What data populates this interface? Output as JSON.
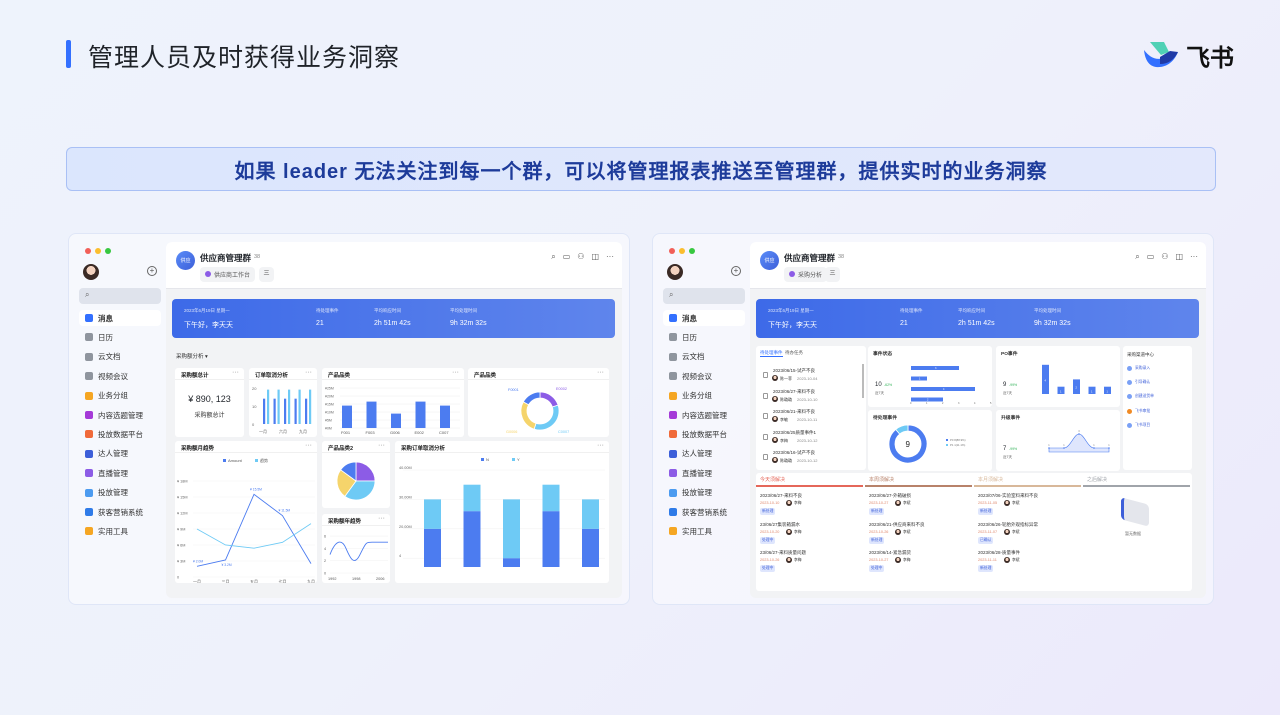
{
  "slide": {
    "title": "管理人员及时获得业务洞察",
    "brand": "飞书",
    "banner": "如果 leader 无法关注到每一个群，可以将管理报表推送至管理群，提供实时的业务洞察"
  },
  "colors": {
    "accent": "#3370ff",
    "blue": "#4c7cf0",
    "light_blue": "#6ecaf5",
    "purple": "#8c5ce6",
    "yellow": "#f5d46b"
  },
  "sidebar": {
    "items": [
      {
        "label": "消息",
        "icon": "chat-icon",
        "color": "#3370ff"
      },
      {
        "label": "日历",
        "icon": "calendar-icon",
        "color": "#8f959e"
      },
      {
        "label": "云文档",
        "icon": "docs-icon",
        "color": "#8f959e"
      },
      {
        "label": "视频会议",
        "icon": "video-icon",
        "color": "#8f959e"
      },
      {
        "label": "业务分组",
        "icon": "grid-icon",
        "color": "#f5a623"
      },
      {
        "label": "内容选题管理",
        "icon": "topic-icon",
        "color": "#a53ad8"
      },
      {
        "label": "投放数据平台",
        "icon": "data-icon",
        "color": "#f06a3a"
      },
      {
        "label": "达人管理",
        "icon": "person-icon",
        "color": "#3d5fd9"
      },
      {
        "label": "直播管理",
        "icon": "live-icon",
        "color": "#8c5ce6"
      },
      {
        "label": "投放管理",
        "icon": "tree-icon",
        "color": "#4c9bf0"
      },
      {
        "label": "获客营销系统",
        "icon": "marketing-icon",
        "color": "#2f7be8"
      },
      {
        "label": "实用工具",
        "icon": "tools-icon",
        "color": "#f5a623"
      }
    ]
  },
  "chat": {
    "name": "供应商管理群",
    "members": "38",
    "avatar_text": "供应"
  },
  "stats": {
    "date": "2023年6月19日 星期一",
    "greeting": "下午好，李天天",
    "items": [
      {
        "label": "待处理事件",
        "value": "21"
      },
      {
        "label": "平均响应时间",
        "value": "2h 51m 42s"
      },
      {
        "label": "平均处理时间",
        "value": "9h 32m 32s"
      }
    ]
  },
  "left": {
    "tab": "供应商工作台",
    "tab2": "三",
    "selector": "采购额分析",
    "total": {
      "title": "采购额总计",
      "value": "¥ 890, 123",
      "caption": "采购额总计"
    },
    "cancel_small": {
      "title": "订单取消分析",
      "type": "bar",
      "yticks": [
        "0",
        "10",
        "20"
      ],
      "xlabels": [
        "一月",
        "六月",
        "九月"
      ],
      "series": [
        [
          14,
          14,
          14,
          14,
          14
        ],
        [
          19,
          19,
          19,
          19,
          19
        ]
      ],
      "ylim": [
        0,
        21
      ]
    },
    "category_bar": {
      "title": "产品品类",
      "type": "bar",
      "categories": [
        "F001",
        "F003",
        "G006",
        "E002",
        "C007"
      ],
      "values": [
        14,
        16.5,
        9,
        16.5,
        14
      ],
      "yticks": [
        "¥0M",
        "¥5M",
        "¥10M",
        "¥15M",
        "¥20M",
        "¥25M"
      ],
      "ylim": [
        0,
        25
      ]
    },
    "category_donut": {
      "title": "产品品类",
      "type": "pie",
      "labels": [
        "E0002",
        "C0007",
        "G0006",
        "F0001"
      ],
      "values": [
        20,
        35,
        28,
        17
      ]
    },
    "monthly": {
      "title": "采购额月趋势",
      "type": "line",
      "legend": [
        "Amount",
        "趋势"
      ],
      "x": [
        "一月",
        "三月",
        "五月",
        "七月",
        "九月"
      ],
      "yticks": [
        "0",
        "¥ 3M",
        "¥ 6M",
        "¥ 9M",
        "¥ 12M",
        "¥ 15M",
        "¥ 18M"
      ],
      "ylim": [
        0,
        18
      ],
      "series": [
        {
          "name": "Amount",
          "values": [
            2,
            3.2,
            15.5,
            11.5,
            2.5
          ]
        },
        {
          "name": "趋势",
          "values": [
            9,
            6,
            5.4,
            6.5,
            10
          ]
        }
      ],
      "labels": [
        "¥ 2.0M",
        "¥ 3.2M",
        "¥ 15.5M",
        "¥ 11.5M"
      ]
    },
    "pie2": {
      "title": "产品品类2",
      "type": "pie",
      "values": [
        25,
        35,
        25,
        15
      ]
    },
    "yearly": {
      "title": "采购额年趋势",
      "type": "line",
      "x": [
        "1992",
        "1998",
        "2006"
      ],
      "yticks": [
        "0",
        "2",
        "4",
        "6"
      ],
      "ylim": [
        0,
        6.5
      ]
    },
    "stacked": {
      "title": "采购订单取消分析",
      "type": "bar",
      "legend": [
        "N",
        "Y"
      ],
      "yticks": [
        "4",
        "20.00M",
        "30.00M",
        "40.00M"
      ],
      "ylim": [
        7,
        40
      ],
      "series": [
        {
          "name": "N",
          "values": [
            20,
            26,
            10,
            26,
            20
          ]
        },
        {
          "name": "Y",
          "values": [
            10,
            9,
            20,
            9,
            10
          ]
        }
      ],
      "label": "4"
    }
  },
  "right": {
    "tab": "采购分析",
    "tab2": "三",
    "list": {
      "tabs": [
        "待处理事件",
        "待办任务"
      ],
      "items": [
        {
          "title": "2023/06/15-试产不良",
          "user": "陈一菲",
          "date": "2023-10-04"
        },
        {
          "title": "2023/06/27-来料不良",
          "user": "陈璐璐",
          "date": "2023-10-10"
        },
        {
          "title": "2023/06/21-来料不良",
          "user": "李敏",
          "date": "2023-10-11"
        },
        {
          "title": "2023/06/25质量事件1",
          "user": "李梅",
          "date": "2023-10-12"
        },
        {
          "title": "2023/06/16-试产不良",
          "user": "陈璐璐",
          "date": "2023-10-12"
        }
      ]
    },
    "status": {
      "title": "事件状态",
      "value": "10",
      "change": "-62%",
      "period": "近7天",
      "values": [
        3,
        1,
        4,
        2
      ],
      "xticks": [
        "0",
        "1",
        "2",
        "3",
        "4",
        "5"
      ]
    },
    "pending": {
      "title": "待处理事件",
      "total": "9",
      "legend": [
        "P0 8(88.9%)",
        "P1 1(11.1%)"
      ],
      "values": [
        8,
        1
      ]
    },
    "po": {
      "title": "PO事件",
      "value": "9",
      "change": "-99%",
      "period": "近7天",
      "values": [
        4,
        1,
        2,
        1,
        1
      ]
    },
    "escalate": {
      "title": "升级事件",
      "value": "7",
      "change": "-99%",
      "period": "近7天",
      "values": [
        1,
        1,
        3,
        1,
        1
      ]
    },
    "channels": {
      "title": "采购渠道中心",
      "items": [
        "采购录入",
        "引导确认",
        "创建送货单",
        "飞书审批",
        "飞书项目"
      ]
    },
    "kanban": [
      {
        "title": "今天须解决",
        "color": "#e5675a",
        "items": [
          {
            "t": "2023/06/27-来料不良",
            "d": "2023-10-10",
            "u": "李梅",
            "tag": "新处理"
          },
          {
            "t": "23/06/27集装箱漏水",
            "d": "2023-10-20",
            "u": "李梅",
            "tag": "处理中"
          },
          {
            "t": "23/06/27-来料质量问题",
            "d": "2023-10-26",
            "u": "李梅",
            "tag": "处理中"
          }
        ]
      },
      {
        "title": "本周须解决",
        "color": "#b8826a",
        "items": [
          {
            "t": "2023/06/27-外箱破损",
            "d": "2023-10-27",
            "u": "李斌",
            "tag": "新处理"
          },
          {
            "t": "2023/06/21-供应商来料不良",
            "d": "2023-10-26",
            "u": "李斌",
            "tag": "新处理"
          },
          {
            "t": "2023/06/14-紧急漏货",
            "d": "2023-10-27",
            "u": "李梅",
            "tag": "处理中"
          }
        ]
      },
      {
        "title": "本月须解决",
        "color": "#d8b89a",
        "items": [
          {
            "t": "2023/07/06-实验室料来料不良",
            "d": "2023-11-05",
            "u": "李斌",
            "tag": "新处理"
          },
          {
            "t": "2023/06/26-轮胎外观指标异常",
            "d": "2023-11-07",
            "u": "李斌",
            "tag": "已确认"
          },
          {
            "t": "2023/06/28-质量事件",
            "d": "2023-11-11",
            "u": "李斌",
            "tag": "新处理"
          }
        ]
      },
      {
        "title": "之后解决",
        "color": "#a0a4aa",
        "items": [],
        "empty": "暂无数据"
      }
    ]
  }
}
